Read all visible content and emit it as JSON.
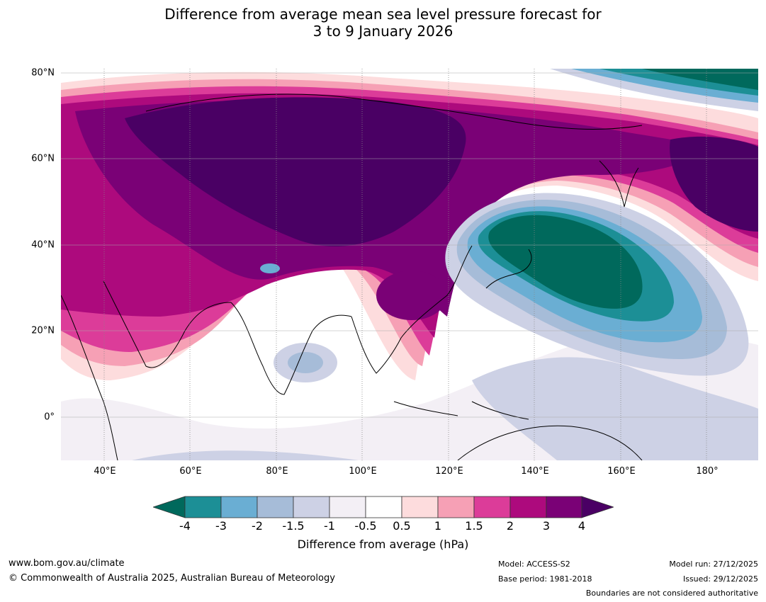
{
  "title_line1": "Difference from average mean sea level pressure forecast for",
  "title_line2": "3 to 9 January 2026",
  "map": {
    "lon_range": [
      30,
      192
    ],
    "lat_range": [
      -10,
      81
    ],
    "lat_labels": [
      {
        "lat": 80,
        "text": "80°N"
      },
      {
        "lat": 60,
        "text": "60°N"
      },
      {
        "lat": 40,
        "text": "40°N"
      },
      {
        "lat": 20,
        "text": "20°N"
      },
      {
        "lat": 0,
        "text": "0°"
      }
    ],
    "lon_labels": [
      {
        "lon": 40,
        "text": "40°E"
      },
      {
        "lon": 60,
        "text": "60°E"
      },
      {
        "lon": 80,
        "text": "80°E"
      },
      {
        "lon": 100,
        "text": "100°E"
      },
      {
        "lon": 120,
        "text": "120°E"
      },
      {
        "lon": 140,
        "text": "140°E"
      },
      {
        "lon": 160,
        "text": "160°E"
      },
      {
        "lon": 180,
        "text": "180°"
      }
    ]
  },
  "colorbar": {
    "title": "Difference from average (hPa)",
    "ticks": [
      "-4",
      "-3",
      "-2",
      "-1.5",
      "-1",
      "-0.5",
      "0.5",
      "1",
      "1.5",
      "2",
      "3",
      "4"
    ],
    "colors": {
      "below_-4": "#00695c",
      "-4_-3": "#1c8f96",
      "-3_-2": "#6aaed3",
      "-2_-1.5": "#a6bcd8",
      "-1.5_-1": "#cdd1e5",
      "-1_-0.5": "#f3eff5",
      "-0.5_0.5": "#ffffff",
      "0.5_1": "#fddcdd",
      "1_1.5": "#f6a0b5",
      "1.5_2": "#dc3c99",
      "2_3": "#ad0a7d",
      "3_4": "#7a0176",
      "above_4": "#4a0064"
    }
  },
  "footer": {
    "url": "www.bom.gov.au/climate",
    "copyright": "© Commonwealth of Australia 2025, Australian Bureau of Meteorology",
    "model": "Model: ACCESS-S2",
    "base_period": "Base period: 1981-2018",
    "model_run": "Model run: 27/12/2025",
    "issued": "Issued: 29/12/2025",
    "disclaimer": "Boundaries are not considered authoritative"
  }
}
